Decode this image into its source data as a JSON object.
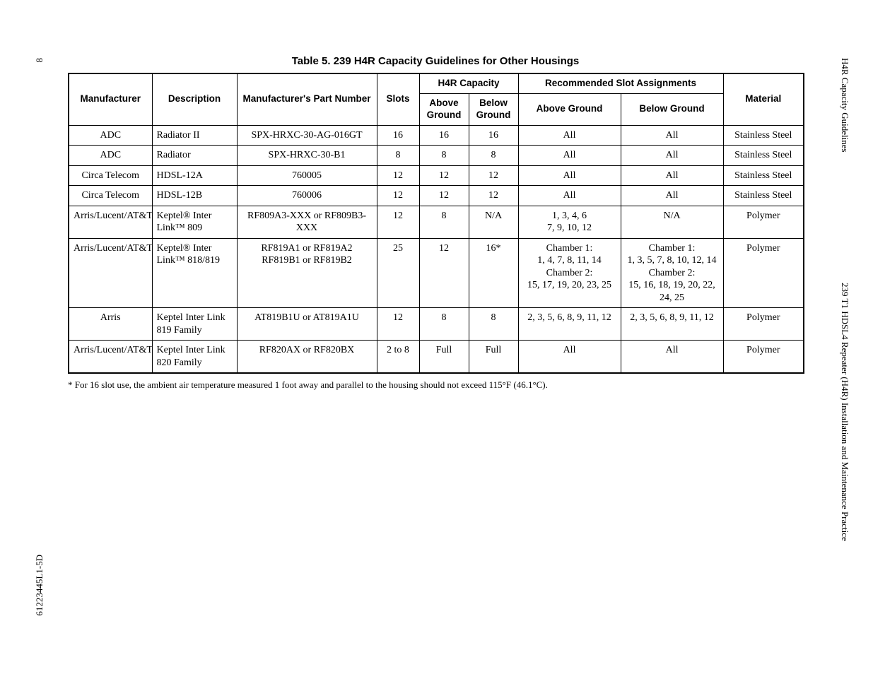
{
  "title": "Table 5.  239 H4R Capacity Guidelines for Other Housings",
  "side": {
    "rightTop": "H4R Capacity Guidelines",
    "rightBottom": "239 T1 HDSL4 Repeater (H4R) Installation and Maintenance Practice",
    "leftTop": "8",
    "leftBottom": "61223445L1-5D"
  },
  "headers": {
    "manufacturer": "Manufacturer",
    "description": "Description",
    "mpn": "Manufacturer's Part Number",
    "slots": "Slots",
    "capacity": "H4R Capacity",
    "above": "Above Ground",
    "below": "Below Ground",
    "recommended": "Recommended Slot Assignments",
    "aboveG": "Above Ground",
    "belowG": "Below Ground",
    "material": "Material"
  },
  "rows": [
    {
      "m": "ADC",
      "d": "Radiator II",
      "p": "SPX-HRXC-30-AG-016GT",
      "s": "16",
      "a": "16",
      "b": "16",
      "ra": "All",
      "rb": "All",
      "mat": "Stainless Steel"
    },
    {
      "m": "ADC",
      "d": "Radiator",
      "p": "SPX-HRXC-30-B1",
      "s": "8",
      "a": "8",
      "b": "8",
      "ra": "All",
      "rb": "All",
      "mat": "Stainless Steel"
    },
    {
      "m": "Circa Telecom",
      "d": "HDSL-12A",
      "p": "760005",
      "s": "12",
      "a": "12",
      "b": "12",
      "ra": "All",
      "rb": "All",
      "mat": "Stainless Steel"
    },
    {
      "m": "Circa Telecom",
      "d": "HDSL-12B",
      "p": "760006",
      "s": "12",
      "a": "12",
      "b": "12",
      "ra": "All",
      "rb": "All",
      "mat": "Stainless Steel"
    },
    {
      "m": "Arris/Lucent/AT&T",
      "d": "Keptel® Inter Link™ 809",
      "p": "RF809A3-XXX or RF809B3-XXX",
      "s": "12",
      "a": "8",
      "b": "N/A",
      "ra": "1, 3, 4, 6\n7, 9, 10, 12",
      "rb": "N/A",
      "mat": "Polymer"
    },
    {
      "m": "Arris/Lucent/AT&T",
      "d": "Keptel® Inter Link™ 818/819",
      "p": "RF819A1 or RF819A2 RF819B1 or RF819B2",
      "s": "25",
      "a": "12",
      "b": "16*",
      "ra": "Chamber 1:\n1, 4, 7, 8, 11, 14\nChamber 2:\n15, 17, 19, 20, 23, 25",
      "rb": "Chamber 1:\n1, 3, 5, 7, 8, 10, 12, 14\nChamber 2:\n15, 16, 18, 19, 20, 22, 24, 25",
      "mat": "Polymer"
    },
    {
      "m": "Arris",
      "d": "Keptel Inter Link 819 Family",
      "p": "AT819B1U or AT819A1U",
      "s": "12",
      "a": "8",
      "b": "8",
      "ra": "2, 3, 5, 6, 8, 9, 11, 12",
      "rb": "2, 3, 5, 6, 8, 9, 11, 12",
      "mat": "Polymer"
    },
    {
      "m": "Arris/Lucent/AT&T",
      "d": "Keptel Inter Link 820 Family",
      "p": "RF820AX or RF820BX",
      "s": "2 to 8",
      "a": "Full",
      "b": "Full",
      "ra": "All",
      "rb": "All",
      "mat": "Polymer"
    }
  ],
  "footnote": "* For 16 slot use, the ambient air temperature measured 1 foot away and parallel to the housing should not exceed 115°F (46.1°C)."
}
